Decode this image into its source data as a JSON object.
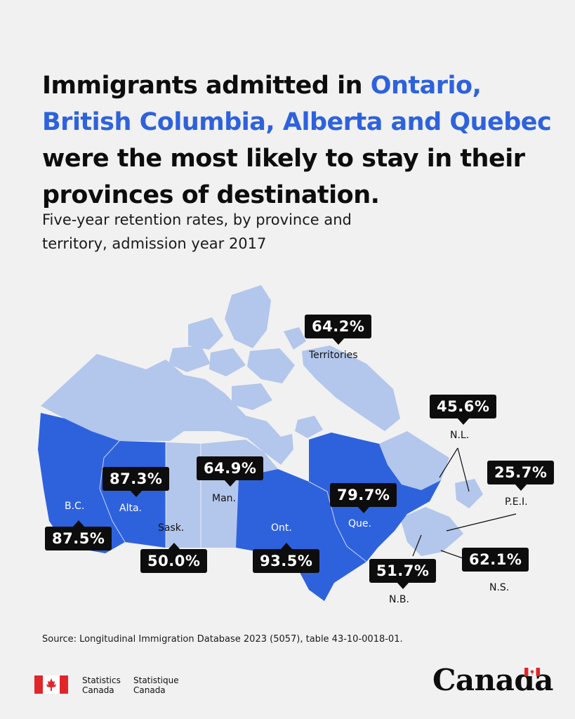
{
  "title": {
    "hl_1": "Ontario,",
    "hl_2": "British Columbia, Alberta",
    "hl_3": "Quebec",
    "prefix": "Immigrants admitted in",
    "and_1": "and",
    "rest": "were the most likely to stay in their provinces of destination."
  },
  "subtitle": "Five-year retention rates, by province and territory, admission year 2017",
  "map": {
    "colors": {
      "highlight": "#2e62dd",
      "light": "#b3c6ec",
      "background": "#f1f1f1",
      "callout": "#0d0d0d"
    },
    "regions": [
      {
        "label": "Territories",
        "value": "64.2%",
        "highlight": false
      },
      {
        "label": "N.L.",
        "value": "45.6%",
        "highlight": false
      },
      {
        "label": "P.E.I.",
        "value": "25.7%",
        "highlight": false
      },
      {
        "label": "Man.",
        "value": "64.9%",
        "highlight": false
      },
      {
        "label": "Alta.",
        "value": "87.3%",
        "highlight": true
      },
      {
        "label": "Que.",
        "value": "79.7%",
        "highlight": true
      },
      {
        "label": "B.C.",
        "value": "87.5%",
        "highlight": true
      },
      {
        "label": "Sask.",
        "value": "50.0%",
        "highlight": false
      },
      {
        "label": "Ont.",
        "value": "93.5%",
        "highlight": true
      },
      {
        "label": "N.B.",
        "value": "51.7%",
        "highlight": false
      },
      {
        "label": "N.S.",
        "value": "62.1%",
        "highlight": false
      }
    ]
  },
  "source": "Source: Longitudinal Immigration Database 2023 (5057), table 43-10-0018-01.",
  "footer": {
    "agency_en_1": "Statistics",
    "agency_en_2": "Canada",
    "agency_fr_1": "Statistique",
    "agency_fr_2": "Canada",
    "wordmark": "Canada",
    "flag_icon": "canada-flag-icon"
  }
}
